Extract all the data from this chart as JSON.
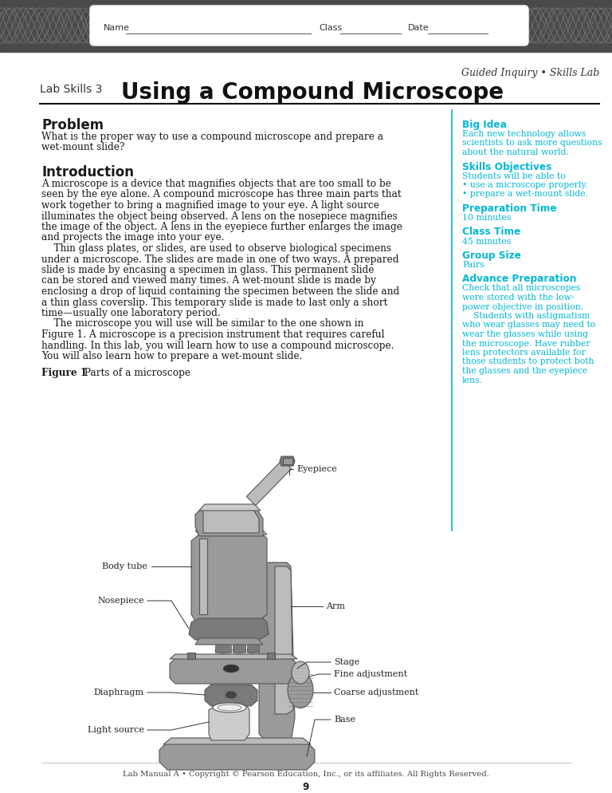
{
  "page_width": 7.68,
  "page_height": 9.94,
  "bg_color": "#ffffff",
  "cyan_color": "#00b8d4",
  "title_lab_skills": "Lab Skills 3",
  "title_main": "Using a Compound Microscope",
  "guided_inquiry": "Guided Inquiry • Skills Lab",
  "section_problem_title": "Problem",
  "section_problem_line1": "What is the proper way to use a compound microscope and prepare a",
  "section_problem_line2": "wet-mount slide?",
  "section_intro_title": "Introduction",
  "intro_lines": [
    "A microscope is a device that magnifies objects that are too small to be",
    "seen by the eye alone. A compound microscope has three main parts that",
    "work together to bring a magnified image to your eye. A light source",
    "illuminates the object being observed. A lens on the nosepiece magnifies",
    "the image of the object. A lens in the eyepiece further enlarges the image",
    "and projects the image into your eye.",
    "    Thin glass plates, or slides, are used to observe biological specimens",
    "under a microscope. The slides are made in one of two ways. A prepared",
    "slide is made by encasing a specimen in glass. This permanent slide",
    "can be stored and viewed many times. A wet-mount slide is made by",
    "enclosing a drop of liquid containing the specimen between the slide and",
    "a thin glass coverslip. This temporary slide is made to last only a short",
    "time—usually one laboratory period.",
    "    The microscope you will use will be similar to the one shown in",
    "Figure 1. A microscope is a precision instrument that requires careful",
    "handling. In this lab, you will learn how to use a compound microscope.",
    "You will also learn how to prepare a wet-mount slide."
  ],
  "figure_caption_bold": "Figure 1",
  "figure_caption_rest": "  Parts of a microscope",
  "sidebar_big_idea_title": "Big Idea",
  "sidebar_big_idea_lines": [
    "Each new technology allows",
    "scientists to ask more questions",
    "about the natural world."
  ],
  "sidebar_skills_obj_title": "Skills Objectives",
  "sidebar_skills_obj_lines": [
    "Students will be able to",
    "• use a microscope properly.",
    "• prepare a wet-mount slide."
  ],
  "sidebar_prep_time_title": "Preparation Time",
  "sidebar_prep_time_lines": [
    "10 minutes"
  ],
  "sidebar_class_time_title": "Class Time",
  "sidebar_class_time_lines": [
    "45 minutes"
  ],
  "sidebar_group_size_title": "Group Size",
  "sidebar_group_size_lines": [
    "Pairs"
  ],
  "sidebar_adv_prep_title": "Advance Preparation",
  "sidebar_adv_prep_lines": [
    "Check that all microscopes",
    "were stored with the low-",
    "power objective in position.",
    "    Students with astigmatism",
    "who wear glasses may need to",
    "wear the glasses while using",
    "the microscope. Have rubber",
    "lens protectors available for",
    "those students to protect both",
    "the glasses and the eyepiece",
    "lens."
  ],
  "footer_text": "Lab Manual A • Copyright © Pearson Education, Inc., or its affiliates. All Rights Reserved.",
  "footer_page": "9",
  "mic_gray_dark": "#7a7a7a",
  "mic_gray_mid": "#9a9a9a",
  "mic_gray_light": "#bbbbbb",
  "mic_gray_lighter": "#cccccc",
  "mic_outline": "#555555"
}
